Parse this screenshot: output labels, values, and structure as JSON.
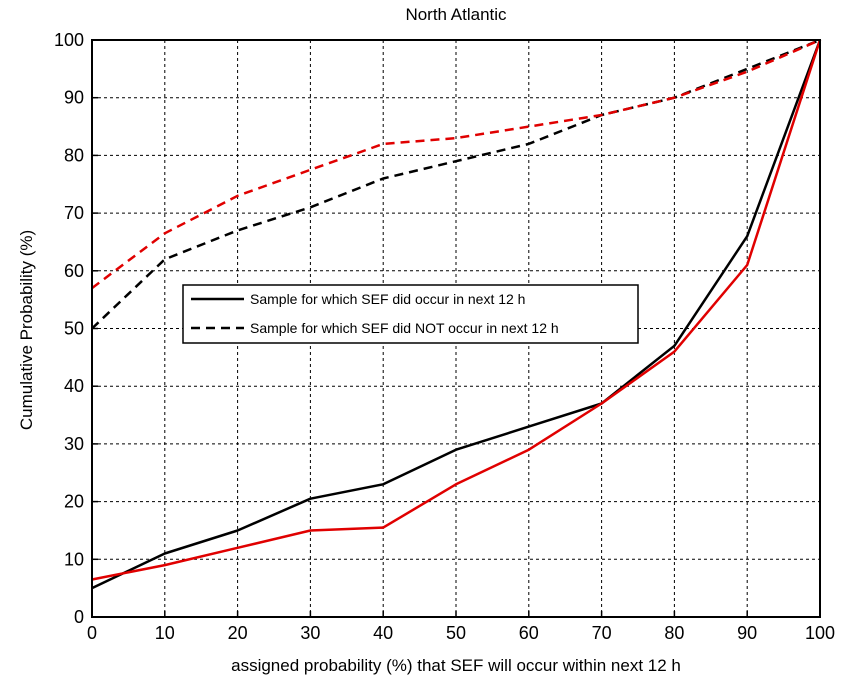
{
  "chart_data": {
    "type": "line",
    "title": "North Atlantic",
    "xlabel": "assigned probability (%) that SEF will occur within next 12 h",
    "ylabel": "Cumulative Probability (%)",
    "xlim": [
      0,
      100
    ],
    "ylim": [
      0,
      100
    ],
    "x_ticks": [
      0,
      10,
      20,
      30,
      40,
      50,
      60,
      70,
      80,
      90,
      100
    ],
    "y_ticks": [
      0,
      10,
      20,
      30,
      40,
      50,
      60,
      70,
      80,
      90,
      100
    ],
    "grid": true,
    "legend_position": "center-left",
    "legend": [
      {
        "label": "Sample for which SEF did occur in next 12 h",
        "style": "solid",
        "color": "#000000"
      },
      {
        "label": "Sample for which SEF did NOT occur in next 12 h",
        "style": "dashed",
        "color": "#000000"
      }
    ],
    "x": [
      0,
      10,
      20,
      30,
      40,
      50,
      60,
      70,
      80,
      90,
      100
    ],
    "series": [
      {
        "color": "#000000",
        "style": "solid",
        "values": [
          5,
          11,
          15,
          20.5,
          23,
          29,
          33,
          37,
          47,
          66,
          100
        ]
      },
      {
        "color": "#e00000",
        "style": "solid",
        "values": [
          6.5,
          9,
          12,
          15,
          15.5,
          23,
          29,
          37,
          46,
          61,
          100
        ]
      },
      {
        "color": "#000000",
        "style": "dashed",
        "values": [
          50,
          62,
          67,
          71,
          76,
          79,
          82,
          87,
          90,
          95,
          100
        ]
      },
      {
        "color": "#e00000",
        "style": "dashed",
        "values": [
          57,
          66.5,
          73,
          77.5,
          82,
          83,
          85,
          87,
          90,
          94.5,
          100
        ]
      }
    ]
  }
}
